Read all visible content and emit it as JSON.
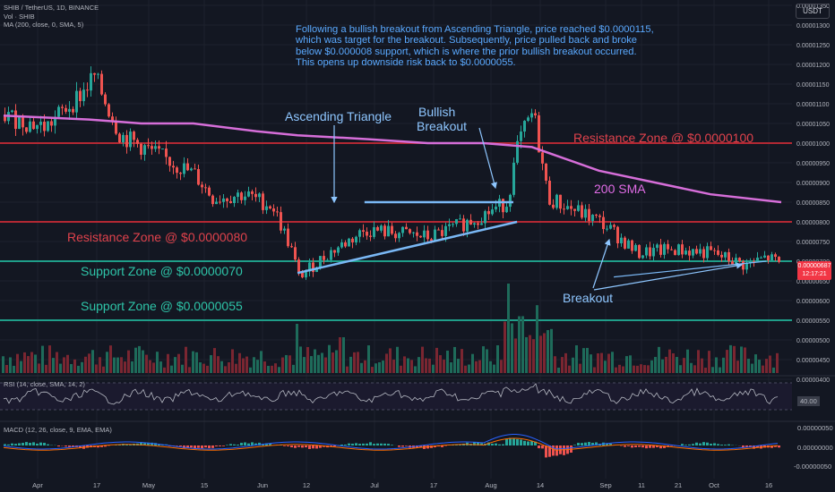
{
  "header": {
    "symbol_line": "SHIB / TetherUS, 1D, BINANCE",
    "vol_line": "Vol · SHIB",
    "ma_line": "MA (200, close, 0, SMA, 5)",
    "currency": "USDT"
  },
  "note": {
    "lines": [
      "Following a bullish breakout from Ascending Triangle, price reached $0.0000115,",
      "which was target for the breakout. Subsequently, price pulled back and broke",
      "below $0.000008 support, which is where the prior bullish breakout occurred.",
      "This opens up downside risk back to $0.0000055."
    ]
  },
  "annotations": {
    "ascending_triangle": "Ascending Triangle",
    "bullish_breakout_1": "Bullish",
    "bullish_breakout_2": "Breakout",
    "resistance_100": "Resistance Zone @ $0.0000100",
    "resistance_80": "Resistance Zone @ $0.0000080",
    "support_70": "Support Zone @ $0.0000070",
    "support_55": "Support Zone @ $0.0000055",
    "sma_label": "200 SMA",
    "breakout": "Breakout"
  },
  "price_tag": {
    "value": "0.00000687",
    "time": "12:17:21"
  },
  "rsi": {
    "title": "RSI (14, close, SMA, 14, 2)",
    "value_label": "40.00"
  },
  "macd": {
    "title": "MACD (12, 26, close, 9, EMA, EMA)",
    "axis_labels": [
      "0.00000050",
      "0.00000000",
      "-0.00000050"
    ]
  },
  "chart_data": {
    "type": "line",
    "title": "SHIB / TetherUS, 1D, BINANCE",
    "price_axis_labels": [
      "0.00001350",
      "0.00001300",
      "0.00001250",
      "0.00001200",
      "0.00001150",
      "0.00001100",
      "0.00001050",
      "0.00001000",
      "0.00000950",
      "0.00000900",
      "0.00000850",
      "0.00000800",
      "0.00000750",
      "0.00000700",
      "0.00000650",
      "0.00000600",
      "0.00000550",
      "0.00000500",
      "0.00000450",
      "0.00000400"
    ],
    "time_axis_labels": [
      "Apr",
      "17",
      "May",
      "15",
      "Jun",
      "12",
      "Jul",
      "17",
      "Aug",
      "14",
      "Sep",
      "11",
      "21",
      "Oct",
      "16"
    ],
    "ylim": [
      4e-06,
      1.35e-05
    ],
    "horizontal_levels": [
      {
        "name": "Resistance Zone @ $0.0000100",
        "value": 1e-05,
        "color": "#b22833"
      },
      {
        "name": "Resistance Zone @ $0.0000080",
        "value": 8e-06,
        "color": "#b22833"
      },
      {
        "name": "Support Zone @ $0.0000070",
        "value": 7e-06,
        "color": "#1f9e89"
      },
      {
        "name": "Support Zone @ $0.0000055",
        "value": 5.5e-06,
        "color": "#1f9e89"
      }
    ],
    "price_series": {
      "name": "SHIB/USDT close",
      "dates": [
        "Mar 25",
        "Apr 5",
        "Apr 15",
        "Apr 18",
        "Apr 25",
        "May 5",
        "May 15",
        "May 20",
        "May 28",
        "Jun 5",
        "Jun 10",
        "Jun 12",
        "Jun 20",
        "Jun 30",
        "Jul 10",
        "Jul 17",
        "Jul 25",
        "Aug 1",
        "Aug 7",
        "Aug 10",
        "Aug 14",
        "Aug 18",
        "Aug 25",
        "Sep 1",
        "Sep 5",
        "Sep 11",
        "Sep 21",
        "Oct 1",
        "Oct 10",
        "Oct 16",
        "Oct 20"
      ],
      "values": [
        1.07e-05,
        1.04e-05,
        1.13e-05,
        1.17e-05,
        1.02e-05,
        9.7e-06,
        9.2e-06,
        8.6e-06,
        8.7e-06,
        8.4e-06,
        7.3e-06,
        6.6e-06,
        7.2e-06,
        7.8e-06,
        7.7e-06,
        7.6e-06,
        7.9e-06,
        8.2e-06,
        8.5e-06,
        1e-05,
        1.08e-05,
        8.6e-06,
        8.3e-06,
        8e-06,
        7.7e-06,
        7.2e-06,
        7.3e-06,
        7.2e-06,
        6.9e-06,
        7.1e-06,
        6.9e-06
      ]
    },
    "sma200": {
      "name": "200 SMA",
      "dates": [
        "Mar 25",
        "Apr 17",
        "May 1",
        "May 15",
        "Jun 1",
        "Jun 12",
        "Jul 1",
        "Jul 17",
        "Aug 1",
        "Aug 14",
        "Sep 1",
        "Sep 21",
        "Oct 1",
        "Oct 20"
      ],
      "values": [
        1.07e-05,
        1.06e-05,
        1.05e-05,
        1.05e-05,
        1.03e-05,
        1.02e-05,
        1.01e-05,
        1e-05,
        1e-05,
        9.9e-06,
        9.3e-06,
        8.9e-06,
        8.7e-06,
        8.5e-06
      ]
    },
    "ascending_triangle": {
      "resistance": {
        "start": "Jun 30",
        "end": "Aug 9",
        "value": 8.5e-06
      },
      "support": {
        "start": "Jun 12",
        "end": "Aug 10",
        "from": 6.7e-06,
        "to": 8e-06
      }
    },
    "breakout_trendline": {
      "start": "Sep 5",
      "end": "Oct 16",
      "from": 6.6e-06,
      "to": 7e-06
    }
  }
}
